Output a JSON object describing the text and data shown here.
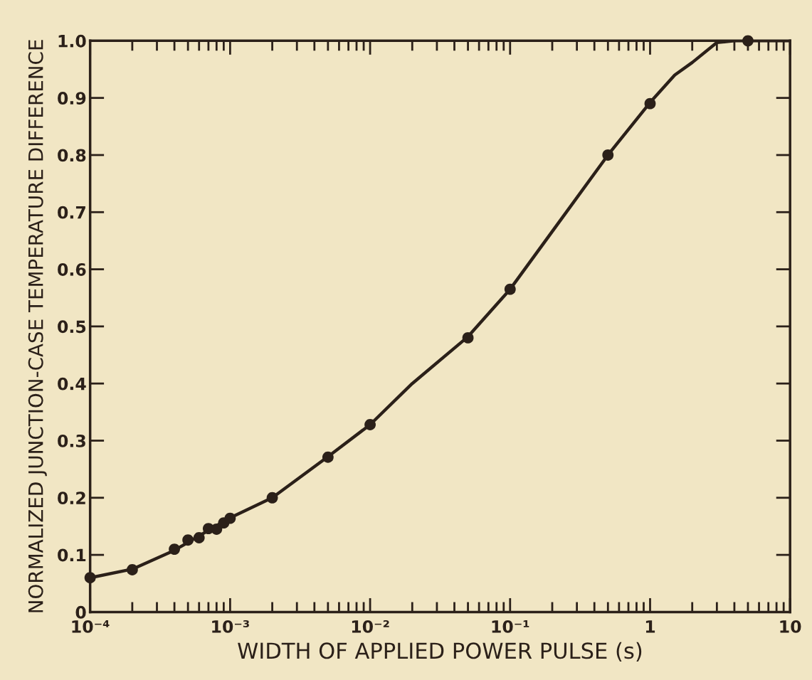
{
  "chart_data": {
    "type": "scatter",
    "xlabel": "WIDTH OF APPLIED POWER PULSE (s)",
    "ylabel": "NORMALIZED JUNCTION-CASE TEMPERATURE DIFFERENCE",
    "log": "x",
    "xlim": [
      0.0001,
      10
    ],
    "ylim": [
      0,
      1.0
    ],
    "xticks": [
      {
        "value": 0.0001,
        "label": "10⁻⁴"
      },
      {
        "value": 0.001,
        "label": "10⁻³"
      },
      {
        "value": 0.01,
        "label": "10⁻²"
      },
      {
        "value": 0.1,
        "label": "10⁻¹"
      },
      1,
      10
    ],
    "yticks": [
      0,
      0.1,
      0.2,
      0.3,
      0.4,
      0.5,
      0.6,
      0.7,
      0.8,
      0.9,
      {
        "value": 1.0,
        "label": "1.0"
      }
    ],
    "grid": false,
    "legend": false,
    "marker": "circle",
    "series": [
      {
        "type": "scatter",
        "color": "#2b2019",
        "x": [
          0.0001,
          0.0002,
          0.0004,
          0.0005,
          0.0006,
          0.0007,
          0.0008,
          0.0009,
          0.001,
          0.002,
          0.005,
          0.01,
          0.05,
          0.1,
          0.5,
          1,
          5
        ],
        "values": [
          0.06,
          0.074,
          0.11,
          0.126,
          0.13,
          0.146,
          0.145,
          0.156,
          0.164,
          0.2,
          0.271,
          0.328,
          0.48,
          0.565,
          0.8,
          0.89,
          1.0
        ]
      },
      {
        "type": "line",
        "color": "#2b2019",
        "line_style": "solid",
        "marker": "none",
        "x": [
          0.0001,
          0.0002,
          0.0004,
          0.001,
          0.002,
          0.005,
          0.01,
          0.02,
          0.05,
          0.1,
          0.5,
          1,
          1.5,
          2,
          3,
          4,
          10
        ],
        "values": [
          0.06,
          0.075,
          0.108,
          0.165,
          0.2,
          0.272,
          0.328,
          0.4,
          0.482,
          0.565,
          0.8,
          0.892,
          0.94,
          0.962,
          0.997,
          1.0,
          1.0
        ]
      }
    ]
  }
}
